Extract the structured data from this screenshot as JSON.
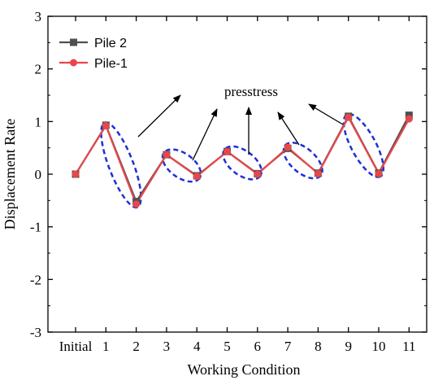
{
  "chart_data": {
    "type": "line",
    "xlabel": "Working Condition",
    "ylabel": "Displacement Rate",
    "categories": [
      "Initial",
      "1",
      "2",
      "3",
      "4",
      "5",
      "6",
      "7",
      "8",
      "9",
      "10",
      "11"
    ],
    "ylim": [
      -3,
      3
    ],
    "yticks": [
      -3,
      -2,
      -1,
      0,
      1,
      2,
      3
    ],
    "yticklabels": [
      "-3",
      "-2",
      "-1",
      "0",
      "1",
      "2",
      "3"
    ],
    "grid": false,
    "legend_position": "top-left",
    "series": [
      {
        "name": "Pile 2",
        "color": "#505050",
        "marker": "square",
        "values": [
          0.0,
          0.93,
          -0.52,
          0.37,
          -0.03,
          0.43,
          0.01,
          0.49,
          0.02,
          1.1,
          0.02,
          1.12
        ]
      },
      {
        "name": "Pile-1",
        "color": "#e8474a",
        "marker": "circle",
        "values": [
          0.0,
          0.92,
          -0.57,
          0.37,
          -0.04,
          0.43,
          0.0,
          0.51,
          0.01,
          1.08,
          0.01,
          1.05
        ]
      }
    ],
    "annotations": [
      {
        "text": "presstress",
        "highlighted_segments": [
          [
            1,
            2
          ],
          [
            3,
            4
          ],
          [
            5,
            6
          ],
          [
            7,
            8
          ],
          [
            9,
            10
          ]
        ]
      }
    ],
    "highlight_color": "#1f2fd6"
  }
}
